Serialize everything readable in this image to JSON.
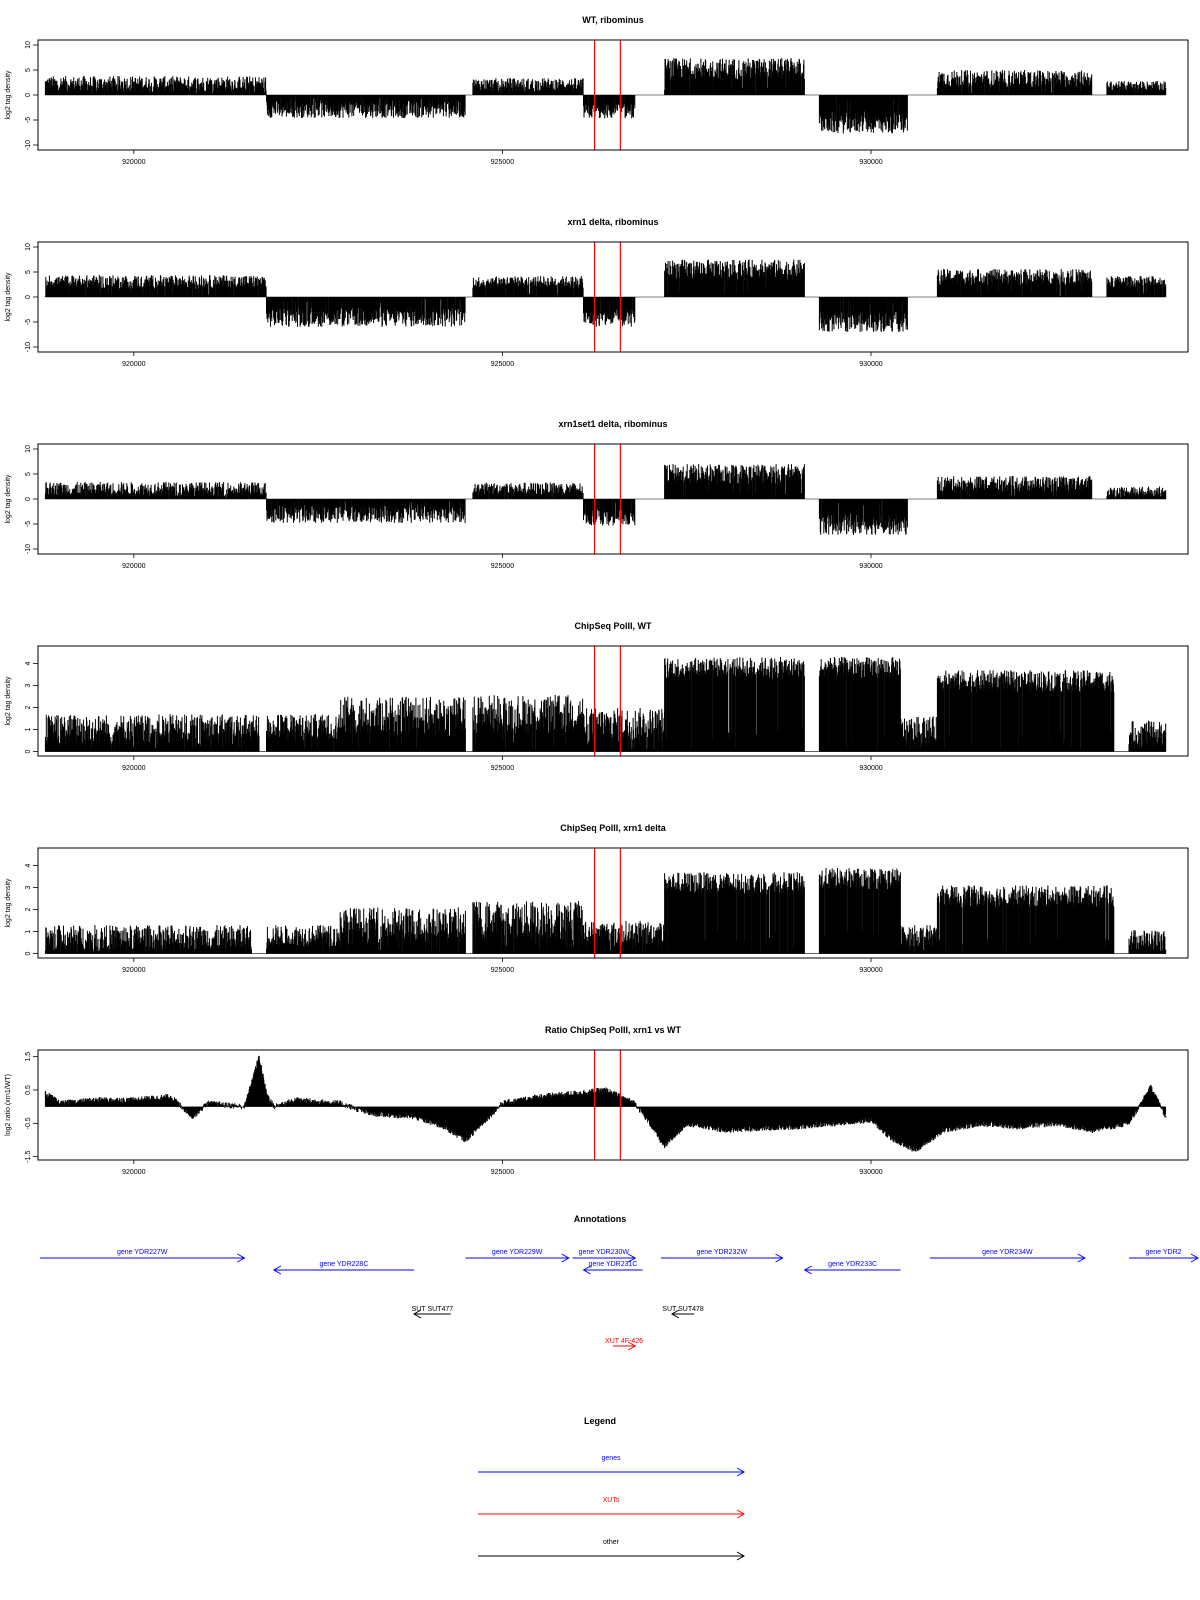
{
  "chart_data": [
    {
      "type": "bar",
      "title": "WT, ribominus",
      "xlabel": "",
      "ylabel": "log2 tag density",
      "xlim": [
        918700,
        934300
      ],
      "ylim": [
        -11,
        11
      ],
      "yticks": [
        "-10",
        "-5",
        "0",
        "5",
        "10"
      ],
      "yticks_num": [
        -10,
        -5,
        0,
        5,
        10
      ],
      "xticks": [
        "920000",
        "925000",
        "930000"
      ],
      "xticks_num": [
        920000,
        925000,
        930000
      ],
      "markers": [
        926250,
        926600
      ],
      "marker_color": "#ff0000",
      "segments": [
        {
          "start": 918800,
          "end": 921800,
          "level": 2.2,
          "amp": 1.6
        },
        {
          "start": 921800,
          "end": 924500,
          "level": -2.8,
          "amp": 1.8
        },
        {
          "start": 924600,
          "end": 926100,
          "level": 2.0,
          "amp": 1.4
        },
        {
          "start": 926100,
          "end": 926800,
          "level": -3.2,
          "amp": 1.6
        },
        {
          "start": 927200,
          "end": 929100,
          "level": 5.2,
          "amp": 2.2
        },
        {
          "start": 929300,
          "end": 930500,
          "level": -5.5,
          "amp": 2.2
        },
        {
          "start": 930900,
          "end": 933000,
          "level": 3.2,
          "amp": 1.8
        },
        {
          "start": 933200,
          "end": 934000,
          "level": 1.8,
          "amp": 1.0
        }
      ]
    },
    {
      "type": "bar",
      "title": "xrn1 delta, ribominus",
      "xlabel": "",
      "ylabel": "log2 tag density",
      "xlim": [
        918700,
        934300
      ],
      "ylim": [
        -11,
        11
      ],
      "yticks": [
        "-10",
        "-5",
        "0",
        "5",
        "10"
      ],
      "yticks_num": [
        -10,
        -5,
        0,
        5,
        10
      ],
      "xticks": [
        "920000",
        "925000",
        "930000"
      ],
      "xticks_num": [
        920000,
        925000,
        930000
      ],
      "markers": [
        926250,
        926600
      ],
      "marker_color": "#ff0000",
      "segments": [
        {
          "start": 918800,
          "end": 921800,
          "level": 3.0,
          "amp": 1.4
        },
        {
          "start": 921800,
          "end": 924500,
          "level": -4.0,
          "amp": 2.0
        },
        {
          "start": 924600,
          "end": 926100,
          "level": 3.0,
          "amp": 1.2
        },
        {
          "start": 926100,
          "end": 926800,
          "level": -4.2,
          "amp": 1.8
        },
        {
          "start": 927200,
          "end": 929100,
          "level": 5.5,
          "amp": 2.0
        },
        {
          "start": 929300,
          "end": 930500,
          "level": -5.0,
          "amp": 2.0
        },
        {
          "start": 930900,
          "end": 933000,
          "level": 4.0,
          "amp": 1.6
        },
        {
          "start": 933200,
          "end": 934000,
          "level": 3.0,
          "amp": 1.2
        }
      ]
    },
    {
      "type": "bar",
      "title": "xrn1set1 delta, ribominus",
      "xlabel": "",
      "ylabel": "log2 tag density",
      "xlim": [
        918700,
        934300
      ],
      "ylim": [
        -11,
        11
      ],
      "yticks": [
        "-10",
        "-5",
        "0",
        "5",
        "10"
      ],
      "yticks_num": [
        -10,
        -5,
        0,
        5,
        10
      ],
      "xticks": [
        "920000",
        "925000",
        "930000"
      ],
      "xticks_num": [
        920000,
        925000,
        930000
      ],
      "markers": [
        926250,
        926600
      ],
      "marker_color": "#ff0000",
      "segments": [
        {
          "start": 918800,
          "end": 921800,
          "level": 2.0,
          "amp": 1.4
        },
        {
          "start": 921800,
          "end": 924500,
          "level": -3.0,
          "amp": 1.8
        },
        {
          "start": 924600,
          "end": 926100,
          "level": 2.0,
          "amp": 1.3
        },
        {
          "start": 926100,
          "end": 926800,
          "level": -3.5,
          "amp": 1.8
        },
        {
          "start": 927200,
          "end": 929100,
          "level": 5.0,
          "amp": 2.0
        },
        {
          "start": 929300,
          "end": 930500,
          "level": -5.0,
          "amp": 2.2
        },
        {
          "start": 930900,
          "end": 933000,
          "level": 3.0,
          "amp": 1.6
        },
        {
          "start": 933200,
          "end": 934000,
          "level": 1.5,
          "amp": 1.0
        }
      ]
    },
    {
      "type": "bar",
      "title": "ChipSeq PolII, WT",
      "xlabel": "",
      "ylabel": "log2 tag density",
      "xlim": [
        918700,
        934300
      ],
      "ylim": [
        -0.2,
        4.8
      ],
      "yticks": [
        "0",
        "1",
        "2",
        "3",
        "4"
      ],
      "yticks_num": [
        0,
        1,
        2,
        3,
        4
      ],
      "xticks": [
        "920000",
        "925000",
        "930000"
      ],
      "xticks_num": [
        920000,
        925000,
        930000
      ],
      "markers": [
        926250,
        926600
      ],
      "marker_color": "#ff0000",
      "segments": [
        {
          "start": 918800,
          "end": 921700,
          "level": 1.0,
          "amp": 0.7
        },
        {
          "start": 921800,
          "end": 922800,
          "level": 1.1,
          "amp": 0.6
        },
        {
          "start": 922800,
          "end": 924500,
          "level": 1.6,
          "amp": 0.9
        },
        {
          "start": 924600,
          "end": 926100,
          "level": 1.7,
          "amp": 0.9
        },
        {
          "start": 926100,
          "end": 927200,
          "level": 1.2,
          "amp": 0.8
        },
        {
          "start": 927200,
          "end": 929100,
          "level": 3.8,
          "amp": 0.5
        },
        {
          "start": 929300,
          "end": 930400,
          "level": 3.8,
          "amp": 0.5
        },
        {
          "start": 930400,
          "end": 930900,
          "level": 1.0,
          "amp": 0.6
        },
        {
          "start": 930900,
          "end": 933300,
          "level": 3.2,
          "amp": 0.5
        },
        {
          "start": 933500,
          "end": 934000,
          "level": 0.8,
          "amp": 0.6
        }
      ]
    },
    {
      "type": "bar",
      "title": "ChipSeq PolII, xrn1 delta",
      "xlabel": "",
      "ylabel": "log2 tag density",
      "xlim": [
        918700,
        934300
      ],
      "ylim": [
        -0.2,
        4.8
      ],
      "yticks": [
        "0",
        "1",
        "2",
        "3",
        "4"
      ],
      "yticks_num": [
        0,
        1,
        2,
        3,
        4
      ],
      "xticks": [
        "920000",
        "925000",
        "930000"
      ],
      "xticks_num": [
        920000,
        925000,
        930000
      ],
      "markers": [
        926250,
        926600
      ],
      "marker_color": "#ff0000",
      "segments": [
        {
          "start": 918800,
          "end": 921600,
          "level": 0.7,
          "amp": 0.6
        },
        {
          "start": 921800,
          "end": 922800,
          "level": 0.8,
          "amp": 0.5
        },
        {
          "start": 922800,
          "end": 924500,
          "level": 1.3,
          "amp": 0.8
        },
        {
          "start": 924600,
          "end": 926100,
          "level": 1.5,
          "amp": 0.9
        },
        {
          "start": 926100,
          "end": 927200,
          "level": 0.9,
          "amp": 0.6
        },
        {
          "start": 927200,
          "end": 929100,
          "level": 3.2,
          "amp": 0.5
        },
        {
          "start": 929300,
          "end": 930400,
          "level": 3.4,
          "amp": 0.5
        },
        {
          "start": 930400,
          "end": 930900,
          "level": 0.8,
          "amp": 0.5
        },
        {
          "start": 930900,
          "end": 933300,
          "level": 2.6,
          "amp": 0.5
        },
        {
          "start": 933500,
          "end": 934000,
          "level": 0.6,
          "amp": 0.5
        }
      ]
    },
    {
      "type": "area",
      "title": "Ratio ChipSeq PolII, xrn1 vs WT",
      "xlabel": "",
      "ylabel": "log2 ratio (xrn1/WT)",
      "xlim": [
        918700,
        934300
      ],
      "ylim": [
        -1.6,
        1.7
      ],
      "yticks": [
        "-1.5",
        "-0.5",
        "0.5",
        "1.5"
      ],
      "yticks_num": [
        -1.5,
        -0.5,
        0.5,
        1.5
      ],
      "xticks": [
        "920000",
        "925000",
        "930000"
      ],
      "xticks_num": [
        920000,
        925000,
        930000
      ],
      "markers": [
        926250,
        926600
      ],
      "marker_color": "#ff0000",
      "baseline": 0,
      "x": [
        918800,
        919000,
        919500,
        920000,
        920500,
        920800,
        921000,
        921500,
        921700,
        921800,
        921900,
        922200,
        922800,
        923200,
        923800,
        924200,
        924500,
        925000,
        925500,
        926000,
        926400,
        926600,
        926800,
        927000,
        927200,
        927500,
        928000,
        929000,
        930000,
        930300,
        930600,
        931000,
        931500,
        932000,
        932500,
        933000,
        933500,
        933800,
        934000
      ],
      "y": [
        0.4,
        0.1,
        0.2,
        0.2,
        0.3,
        -0.3,
        0.1,
        0.0,
        1.5,
        0.4,
        0.0,
        0.2,
        0.1,
        -0.2,
        -0.3,
        -0.6,
        -1.0,
        0.1,
        0.3,
        0.4,
        0.5,
        0.3,
        0.1,
        -0.5,
        -1.2,
        -0.5,
        -0.7,
        -0.6,
        -0.4,
        -1.0,
        -1.3,
        -0.7,
        -0.5,
        -0.6,
        -0.5,
        -0.7,
        -0.5,
        0.6,
        -0.3
      ]
    }
  ],
  "annotations": {
    "title": "Annotations",
    "genes": [
      {
        "label": "gene YDR227W",
        "start": 918100,
        "end": 921500,
        "strand": "+",
        "row": 0
      },
      {
        "label": "gene YDR228C",
        "start": 921900,
        "end": 923800,
        "strand": "-",
        "row": 1
      },
      {
        "label": "gene YDR229W",
        "start": 924500,
        "end": 925900,
        "strand": "+",
        "row": 0
      },
      {
        "label": "gene YDR230W",
        "start": 925950,
        "end": 926800,
        "strand": "+",
        "row": 0
      },
      {
        "label": "gene YDR231C",
        "start": 926100,
        "end": 926900,
        "strand": "-",
        "row": 1
      },
      {
        "label": "gene YDR232W",
        "start": 927150,
        "end": 928800,
        "strand": "+",
        "row": 0
      },
      {
        "label": "gene YDR233C",
        "start": 929100,
        "end": 930400,
        "strand": "-",
        "row": 1
      },
      {
        "label": "gene YDR234W",
        "start": 930800,
        "end": 932900,
        "strand": "+",
        "row": 0
      },
      {
        "label": "gene YDR2",
        "start": 933500,
        "end": 934700,
        "strand": "+",
        "row": 0
      }
    ],
    "others": [
      {
        "label": "SUT SUT477",
        "start": 923800,
        "end": 924300,
        "strand": "-"
      },
      {
        "label": "SUT SUT478",
        "start": 927300,
        "end": 927600,
        "strand": "-"
      }
    ],
    "xuts": [
      {
        "label": "XUT 4F-426",
        "start": 926500,
        "end": 926800,
        "strand": "+"
      }
    ]
  },
  "legend": {
    "title": "Legend",
    "items": [
      {
        "label": "genes",
        "color": "#0000ff"
      },
      {
        "label": "XUTs",
        "color": "#ff0000"
      },
      {
        "label": "other",
        "color": "#000000"
      }
    ]
  },
  "colors": {
    "gene": "#0000ff",
    "xut": "#ff0000",
    "other": "#000000",
    "bars": "#000000",
    "marker": "#ff0000"
  }
}
